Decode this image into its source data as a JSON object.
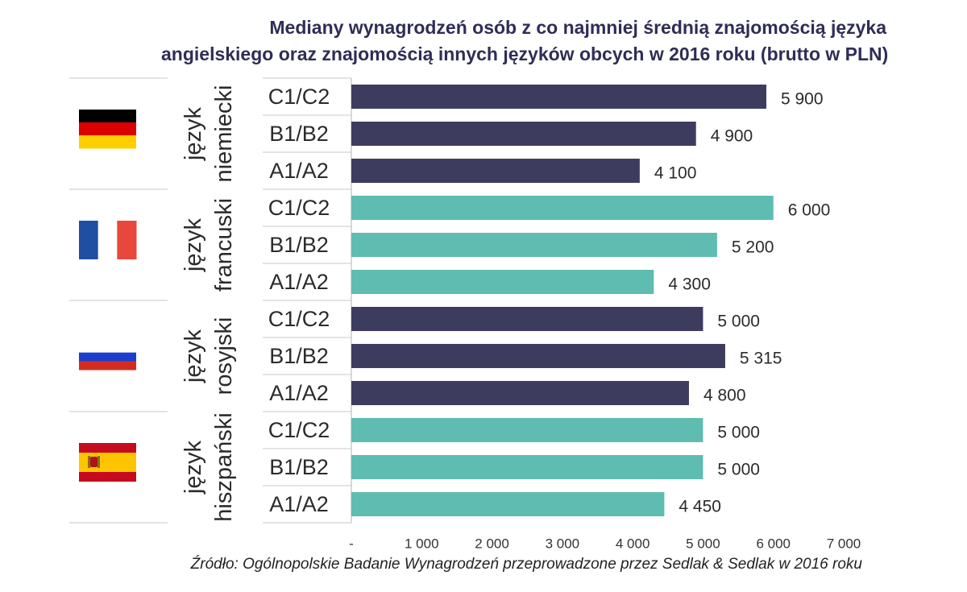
{
  "title_lines": [
    "Mediany wynagrodzeń osób z  co najmniej średnią znajomością języka",
    "angielskiego oraz znajomością innych języków obcych w 2016 roku (brutto w PLN)"
  ],
  "source": "Źródło: Ogólnopolskie Badanie Wynagrodzeń przeprowadzone przez Sedlak & Sedlak w 2016 roku",
  "colors": {
    "navy": "#3e3c5e",
    "teal": "#5fbcb0"
  },
  "chart_data": {
    "type": "bar",
    "orientation": "horizontal",
    "xlim": [
      0,
      7000
    ],
    "x_ticks": [
      "-",
      "1 000",
      "2 000",
      "3 000",
      "4 000",
      "5 000",
      "6 000",
      "7 000"
    ],
    "groups": [
      {
        "label_lines": [
          "język",
          "niemiecki"
        ],
        "flag": "germany-flag-icon",
        "color": "navy",
        "bars": [
          {
            "level": "C1/C2",
            "value": 5900,
            "label": "5 900"
          },
          {
            "level": "B1/B2",
            "value": 4900,
            "label": "4 900"
          },
          {
            "level": "A1/A2",
            "value": 4100,
            "label": "4 100"
          }
        ]
      },
      {
        "label_lines": [
          "język",
          "francuski"
        ],
        "flag": "france-flag-icon",
        "color": "teal",
        "bars": [
          {
            "level": "C1/C2",
            "value": 6000,
            "label": "6 000"
          },
          {
            "level": "B1/B2",
            "value": 5200,
            "label": "5 200"
          },
          {
            "level": "A1/A2",
            "value": 4300,
            "label": "4 300"
          }
        ]
      },
      {
        "label_lines": [
          "język",
          "rosyjski"
        ],
        "flag": "russia-flag-icon",
        "color": "navy",
        "bars": [
          {
            "level": "C1/C2",
            "value": 5000,
            "label": "5 000"
          },
          {
            "level": "B1/B2",
            "value": 5315,
            "label": "5 315"
          },
          {
            "level": "A1/A2",
            "value": 4800,
            "label": "4 800"
          }
        ]
      },
      {
        "label_lines": [
          "język",
          "hiszpański"
        ],
        "flag": "spain-flag-icon",
        "color": "teal",
        "bars": [
          {
            "level": "C1/C2",
            "value": 5000,
            "label": "5 000"
          },
          {
            "level": "B1/B2",
            "value": 5000,
            "label": "5 000"
          },
          {
            "level": "A1/A2",
            "value": 4450,
            "label": "4 450"
          }
        ]
      }
    ]
  }
}
